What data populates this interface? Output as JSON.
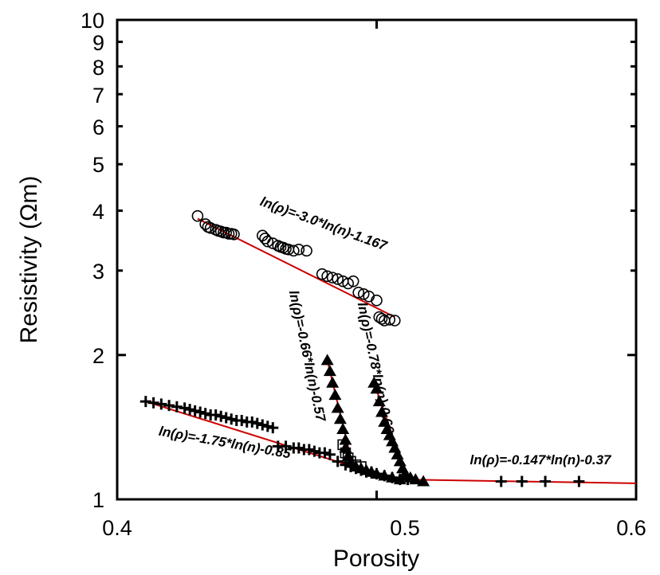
{
  "chart_data": {
    "type": "scatter",
    "title": "",
    "xlabel": "Porosity",
    "ylabel": "Resistivity (Ωm)",
    "xlim": [
      0.4,
      0.6
    ],
    "ylim": [
      1,
      10
    ],
    "yscale": "log",
    "x_ticks": [
      "0.4",
      "0.5",
      "0.6"
    ],
    "y_ticks": [
      "1",
      "2",
      "3",
      "4",
      "5",
      "6",
      "7",
      "8",
      "9",
      "10"
    ],
    "grid": false,
    "legend": "none",
    "colors": {
      "points": "#000000",
      "fit_line": "#cc0000",
      "axes": "#000000"
    },
    "series": [
      {
        "marker": "circle",
        "x": [
          0.431,
          0.434,
          0.435,
          0.436,
          0.438,
          0.439,
          0.44,
          0.441,
          0.442,
          0.443,
          0.444,
          0.445,
          0.456,
          0.457,
          0.458,
          0.46,
          0.462,
          0.463,
          0.464,
          0.465,
          0.466,
          0.468,
          0.47,
          0.473,
          0.479,
          0.481,
          0.483,
          0.485,
          0.487,
          0.489,
          0.491,
          0.493,
          0.495,
          0.497,
          0.5,
          0.501,
          0.502,
          0.503,
          0.505,
          0.507
        ],
        "y": [
          3.9,
          3.75,
          3.7,
          3.68,
          3.65,
          3.63,
          3.62,
          3.6,
          3.6,
          3.58,
          3.58,
          3.57,
          3.55,
          3.5,
          3.45,
          3.42,
          3.38,
          3.36,
          3.35,
          3.33,
          3.32,
          3.3,
          3.32,
          3.3,
          2.95,
          2.92,
          2.9,
          2.88,
          2.85,
          2.82,
          2.85,
          2.7,
          2.68,
          2.65,
          2.6,
          2.4,
          2.38,
          2.36,
          2.37,
          2.36
        ]
      },
      {
        "marker": "plus",
        "x": [
          0.411,
          0.414,
          0.417,
          0.42,
          0.423,
          0.426,
          0.428,
          0.43,
          0.432,
          0.434,
          0.436,
          0.438,
          0.44,
          0.442,
          0.444,
          0.446,
          0.448,
          0.45,
          0.452,
          0.454,
          0.456,
          0.458,
          0.46,
          0.462,
          0.465,
          0.468,
          0.47,
          0.472,
          0.474,
          0.476,
          0.478,
          0.48,
          0.482,
          0.485,
          0.488,
          0.49,
          0.492,
          0.494,
          0.496,
          0.498,
          0.5,
          0.503,
          0.506,
          0.509,
          0.512,
          0.548,
          0.556,
          0.565,
          0.578
        ],
        "y": [
          1.6,
          1.59,
          1.58,
          1.57,
          1.56,
          1.55,
          1.54,
          1.53,
          1.52,
          1.51,
          1.5,
          1.5,
          1.49,
          1.48,
          1.47,
          1.46,
          1.46,
          1.45,
          1.45,
          1.44,
          1.43,
          1.42,
          1.41,
          1.29,
          1.29,
          1.28,
          1.28,
          1.27,
          1.27,
          1.26,
          1.25,
          1.25,
          1.24,
          1.2,
          1.18,
          1.17,
          1.16,
          1.15,
          1.14,
          1.14,
          1.13,
          1.12,
          1.11,
          1.1,
          1.1,
          1.09,
          1.09,
          1.09,
          1.09
        ]
      },
      {
        "marker": "filled-triangle",
        "x": [
          0.481,
          0.482,
          0.483,
          0.484,
          0.485,
          0.486,
          0.487,
          0.488,
          0.488,
          0.489,
          0.49,
          0.492,
          0.494,
          0.496,
          0.498,
          0.5,
          0.503,
          0.506,
          0.509
        ],
        "y": [
          1.95,
          1.85,
          1.75,
          1.65,
          1.55,
          1.47,
          1.4,
          1.33,
          1.28,
          1.23,
          1.2,
          1.17,
          1.16,
          1.15,
          1.14,
          1.13,
          1.12,
          1.11,
          1.1
        ]
      },
      {
        "marker": "filled-triangle",
        "x": [
          0.499,
          0.5,
          0.501,
          0.502,
          0.503,
          0.504,
          0.505,
          0.506,
          0.507,
          0.508,
          0.509,
          0.51,
          0.511,
          0.513,
          0.515,
          0.518
        ],
        "y": [
          1.75,
          1.7,
          1.6,
          1.52,
          1.45,
          1.4,
          1.36,
          1.32,
          1.28,
          1.24,
          1.2,
          1.16,
          1.13,
          1.11,
          1.1,
          1.09
        ]
      },
      {
        "marker": "open-square",
        "x": [
          0.487,
          0.488,
          0.489,
          0.49,
          0.492,
          0.494
        ],
        "y": [
          1.3,
          1.25,
          1.22,
          1.2,
          1.18,
          1.17
        ]
      }
    ],
    "fit_lines": [
      {
        "x": [
          0.431,
          0.507
        ],
        "y": [
          3.85,
          2.4
        ]
      },
      {
        "x": [
          0.411,
          0.5
        ],
        "y": [
          1.6,
          1.13
        ]
      },
      {
        "x": [
          0.481,
          0.491
        ],
        "y": [
          1.95,
          1.16
        ]
      },
      {
        "x": [
          0.499,
          0.512
        ],
        "y": [
          1.75,
          1.1
        ]
      },
      {
        "x": [
          0.51,
          0.6
        ],
        "y": [
          1.1,
          1.08
        ]
      }
    ],
    "annotations": [
      {
        "text": "ln(ρ)=-3.0*ln(n)-1.167"
      },
      {
        "text": "ln(ρ)=-0.66*ln(n)-0.57"
      },
      {
        "text": "ln(ρ)=-0.78*ln(n)-0.66"
      },
      {
        "text": "ln(ρ)=-1.75*ln(n)-0.85"
      },
      {
        "text": "ln(ρ)=-0.147*ln(n)-0.37"
      }
    ]
  }
}
